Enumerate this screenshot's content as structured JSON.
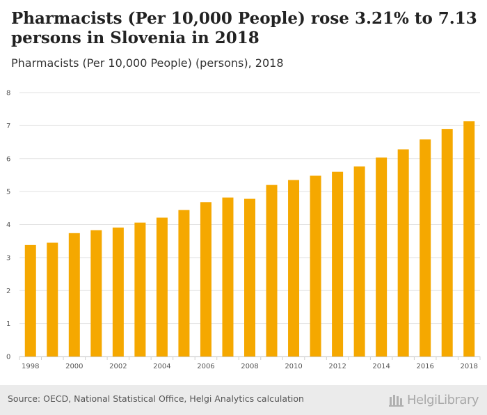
{
  "header": {
    "title": "Pharmacists (Per 10,000 People) rose 3.21% to 7.13 persons in Slovenia in 2018",
    "subtitle": "Pharmacists (Per 10,000 People) (persons), 2018"
  },
  "footer": {
    "source": "Source: OECD, National Statistical Office, Helgi Analytics calculation",
    "logo_text": "HelgiLibrary"
  },
  "colors": {
    "bar": "#f5a800",
    "grid": "#e2e2e2",
    "background": "#ebebeb"
  },
  "chart_data": {
    "type": "bar",
    "title": "Pharmacists (Per 10,000 People) (persons), 2018",
    "categories": [
      "1998",
      "1999",
      "2000",
      "2001",
      "2002",
      "2003",
      "2004",
      "2005",
      "2006",
      "2007",
      "2008",
      "2009",
      "2010",
      "2011",
      "2012",
      "2013",
      "2014",
      "2015",
      "2016",
      "2017",
      "2018"
    ],
    "x_tick_labels": [
      "1998",
      "2000",
      "2002",
      "2004",
      "2006",
      "2008",
      "2010",
      "2012",
      "2014",
      "2016",
      "2018"
    ],
    "values": [
      3.38,
      3.45,
      3.74,
      3.83,
      3.91,
      4.06,
      4.21,
      4.44,
      4.68,
      4.82,
      4.78,
      5.2,
      5.35,
      5.48,
      5.6,
      5.76,
      6.03,
      6.28,
      6.58,
      6.9,
      7.13
    ],
    "ylim": [
      0,
      8
    ],
    "y_ticks": [
      0,
      1,
      2,
      3,
      4,
      5,
      6,
      7,
      8
    ],
    "xlabel": "",
    "ylabel": "",
    "grid": true,
    "legend": "none"
  }
}
